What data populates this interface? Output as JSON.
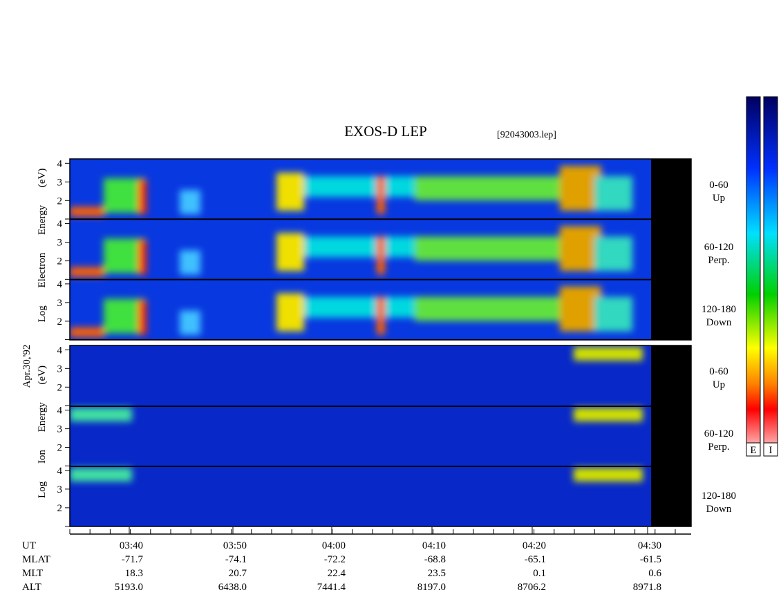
{
  "title": "EXOS-D LEP",
  "file": "[92043003.lep]",
  "date": "Apr.30,'92",
  "electron_label": "Log Electron Energy (eV)",
  "ion_label": "Log Ion Energy (eV)",
  "energy_ticks": [
    2,
    3,
    4
  ],
  "angle_bins": [
    {
      "range": "0-60",
      "direction": "Up"
    },
    {
      "range": "60-120",
      "direction": "Perp."
    },
    {
      "range": "120-180",
      "direction": "Down"
    }
  ],
  "colorbar_labels": [
    "E",
    "I"
  ],
  "time_axis": {
    "row_labels": [
      "UT",
      "MLAT",
      "MLT",
      "ALT"
    ],
    "columns": [
      [
        "03:40",
        "-71.7",
        "18.3",
        "5193.0"
      ],
      [
        "03:50",
        "-74.1",
        "20.7",
        "6438.0"
      ],
      [
        "04:00",
        "-72.2",
        "22.4",
        "7441.4"
      ],
      [
        "04:10",
        "-68.8",
        "23.5",
        "8197.0"
      ],
      [
        "04:20",
        "-65.1",
        "0.1",
        "8706.2"
      ],
      [
        "04:30",
        "-61.5",
        "0.6",
        "8971.8"
      ]
    ]
  }
}
